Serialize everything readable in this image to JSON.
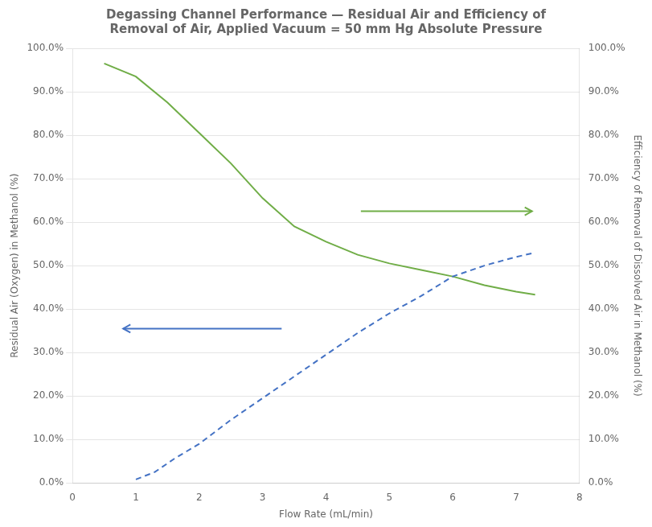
{
  "chart_data": {
    "type": "line",
    "title": "Degassing Channel Performance — Residual Air and Efficiency of\nRemoval of Air, Applied Vacuum = 50 mm Hg Absolute Pressure",
    "xlabel": "Flow Rate (mL/min)",
    "ylabel": "Residual Air (Oxygen) in Methanol (%)",
    "y2label": "Efficiency of Removal of Dissolved Air in Methanol (%)",
    "xlim": [
      0,
      8
    ],
    "xticks": [
      0,
      1,
      2,
      3,
      4,
      5,
      6,
      7,
      8
    ],
    "ylim": [
      0,
      1.0
    ],
    "yticks": [
      {
        "value": 0.0,
        "label": "0.0%"
      },
      {
        "value": 0.1,
        "label": "10.0%"
      },
      {
        "value": 0.2,
        "label": "20.0%"
      },
      {
        "value": 0.3,
        "label": "30.0%"
      },
      {
        "value": 0.4,
        "label": "40.0%"
      },
      {
        "value": 0.5,
        "label": "50.0%"
      },
      {
        "value": 0.6,
        "label": "60.0%"
      },
      {
        "value": 0.7,
        "label": "70.0%"
      },
      {
        "value": 0.8,
        "label": "80.0%"
      },
      {
        "value": 0.9,
        "label": "90.0%"
      },
      {
        "value": 1.0,
        "label": "100.0%"
      }
    ],
    "y2lim": [
      0,
      1.0
    ],
    "y2ticks": [
      {
        "value": 0.0,
        "label": "0.0%"
      },
      {
        "value": 0.1,
        "label": "10.0%"
      },
      {
        "value": 0.2,
        "label": "20.0%"
      },
      {
        "value": 0.3,
        "label": "30.0%"
      },
      {
        "value": 0.4,
        "label": "40.0%"
      },
      {
        "value": 0.5,
        "label": "50.0%"
      },
      {
        "value": 0.6,
        "label": "60.0%"
      },
      {
        "value": 0.7,
        "label": "70.0%"
      },
      {
        "value": 0.8,
        "label": "80.0%"
      },
      {
        "value": 0.9,
        "label": "90.0%"
      },
      {
        "value": 1.0,
        "label": "100.0%"
      }
    ],
    "grid": "y",
    "series": [
      {
        "color": "#4472C4",
        "line_style": "dashed",
        "marker": "none",
        "x": [
          1.0,
          1.3,
          1.6,
          2.0,
          2.5,
          3.0,
          3.5,
          4.0,
          4.5,
          5.0,
          5.5,
          6.0,
          6.5,
          7.0,
          7.3
        ],
        "values": [
          0.008,
          0.025,
          0.055,
          0.09,
          0.145,
          0.195,
          0.245,
          0.295,
          0.345,
          0.39,
          0.43,
          0.475,
          0.5,
          0.52,
          0.53
        ]
      },
      {
        "color": "#70AD47",
        "line_style": "solid",
        "marker": "none",
        "axis": "y2",
        "x": [
          0.5,
          1.0,
          1.5,
          2.0,
          2.5,
          3.0,
          3.5,
          4.0,
          4.5,
          5.0,
          5.5,
          6.0,
          6.5,
          7.0,
          7.3
        ],
        "values": [
          0.965,
          0.935,
          0.875,
          0.805,
          0.735,
          0.655,
          0.59,
          0.555,
          0.525,
          0.505,
          0.49,
          0.475,
          0.455,
          0.44,
          0.433
        ]
      }
    ],
    "arrows": [
      {
        "x_start": 3.3,
        "x_end": 0.8,
        "y": 0.355,
        "color": "#4472C4"
      },
      {
        "x_start": 4.55,
        "x_end": 7.25,
        "y": 0.625,
        "color": "#70AD47"
      }
    ]
  }
}
